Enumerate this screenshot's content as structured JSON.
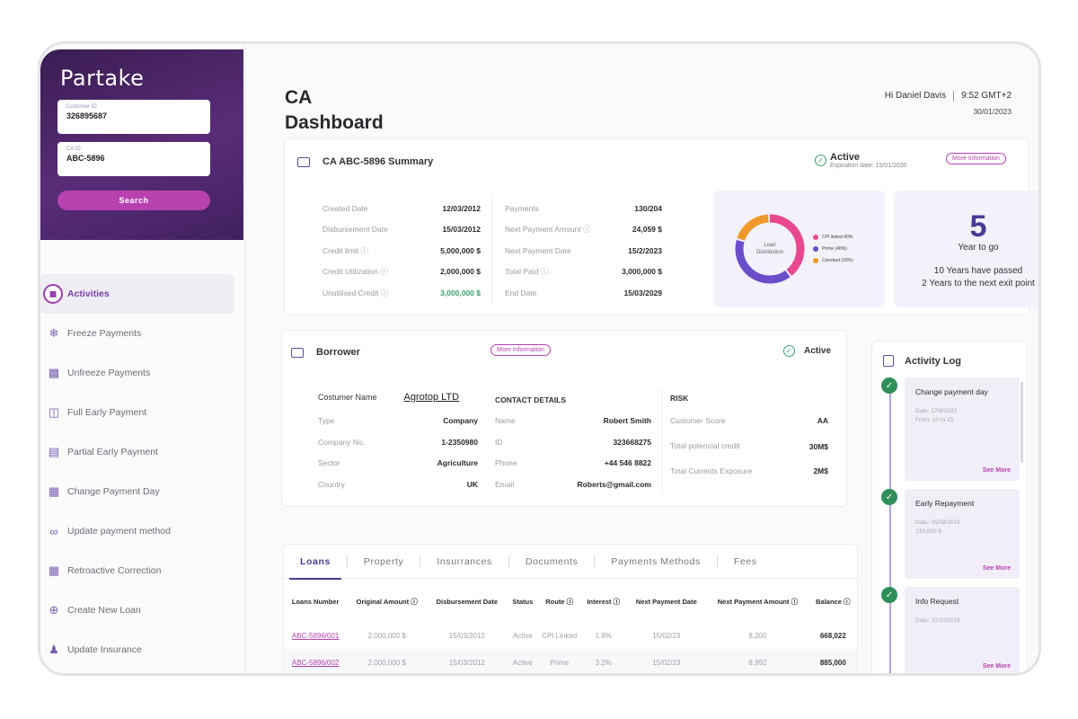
{
  "sidebar": {
    "logo": "Partake",
    "customer_id": {
      "label": "Costumer ID",
      "value": "326895687"
    },
    "ca_id": {
      "label": "CA ID",
      "value": "ABC-5896"
    },
    "search_label": "Search",
    "menu": [
      {
        "label": "Activities",
        "icon": "activities-icon",
        "active": true
      },
      {
        "label": "Freeze Payments",
        "icon": "snowflake-icon"
      },
      {
        "label": "Unfreeze Payments",
        "icon": "unfreeze-icon"
      },
      {
        "label": "Full Early Payment",
        "icon": "full-payment-icon"
      },
      {
        "label": "Partial Early Payment",
        "icon": "partial-payment-icon"
      },
      {
        "label": "Change Payment Day",
        "icon": "calendar-icon"
      },
      {
        "label": "Update payment method",
        "icon": "link-icon"
      },
      {
        "label": "Retroactive Correction",
        "icon": "correction-icon"
      },
      {
        "label": "Create New Loan",
        "icon": "new-loan-icon"
      },
      {
        "label": "Update  Insurance",
        "icon": "insurance-icon"
      }
    ]
  },
  "header": {
    "title_line1": "CA",
    "title_line2": "Dashboard",
    "greeting": "Hi Daniel Davis",
    "time": "9:52 GMT+2",
    "date": "30/01/2023"
  },
  "summary": {
    "title": "CA ABC-5896 Summary",
    "status": "Active",
    "expiration": "Expiration date: 15/01/2030",
    "more_info": "More Information",
    "left": [
      {
        "k": "Created Date",
        "v": "12/03/2012"
      },
      {
        "k": "Disbursement Date",
        "v": "15/03/2012"
      },
      {
        "k": "Credit limit",
        "v": "5,000,000 $"
      },
      {
        "k": "Credit Utilization",
        "v": "2,000,000 $"
      },
      {
        "k": "Unutilised Credit",
        "v": "3,000,000 $"
      }
    ],
    "right": [
      {
        "k": "Payments",
        "v": "130/204"
      },
      {
        "k": "Next Payment Amount",
        "v": "24,059 $"
      },
      {
        "k": "Next Payment Date",
        "v": "15/2/2023"
      },
      {
        "k": "Total Paid",
        "v": "3,000,000 $"
      },
      {
        "k": "End Date",
        "v": "15/03/2029"
      }
    ],
    "accent_green": "#3aa06e",
    "years": {
      "number": "5",
      "label": "Year to go",
      "line1": "10 Years have passed",
      "line2": "2 Years to the next exit point"
    }
  },
  "chart_data": {
    "type": "pie",
    "title": "Loan Distribution",
    "categories": [
      "CPI linked",
      "Prime",
      "Constant"
    ],
    "values": [
      40,
      40,
      20
    ],
    "labels": [
      "CPI linked  40%",
      "Prime  (40%)",
      "Constant  (20%)"
    ],
    "colors": [
      "#e8488f",
      "#6a4ec9",
      "#f0982a"
    ]
  },
  "borrower": {
    "title": "Borrower",
    "more_info": "More Information",
    "status": "Active",
    "customer_name_label": "Costumer Name",
    "customer_name": "Agrotop LTD",
    "details": [
      {
        "k": "Type",
        "v": "Company"
      },
      {
        "k": "Company No.",
        "v": "1-2350980"
      },
      {
        "k": "Sector",
        "v": "Agriculture"
      },
      {
        "k": "Country",
        "v": "UK"
      }
    ],
    "contact_title": "CONTACT DETAILS",
    "contact": [
      {
        "k": "Name",
        "v": "Robert Smith"
      },
      {
        "k": "ID",
        "v": "323668275"
      },
      {
        "k": "Phone",
        "v": "+44 546 8822"
      },
      {
        "k": "Email",
        "v": "Roberts@gmail.com"
      }
    ],
    "risk_title": "RISK",
    "risk": [
      {
        "k": "Customer Score",
        "v": "AA"
      },
      {
        "k": "Total potencial credit",
        "v": "30M$"
      },
      {
        "k": "Total Currents Exposure",
        "v": "2M$"
      }
    ]
  },
  "tabs": {
    "items": [
      "Loans",
      "Property",
      "Insurrances",
      "Documents",
      "Payments Methods",
      "Fees"
    ],
    "columns": [
      "Loans Number",
      "Original Amount",
      "Disbursement Date",
      "Status",
      "Route",
      "Interest",
      "Next Payment Date",
      "Next Payment Amount",
      "Balance"
    ],
    "rows": [
      [
        "ABC-5896/001",
        "2,000,000 $",
        "15/03/2012",
        "Active",
        "CPI Linked",
        "1.8%",
        "15/02/23",
        "8,200",
        "668,022"
      ],
      [
        "ABC-5896/002",
        "2,000,000 $",
        "15/03/2012",
        "Active",
        "Prime",
        "3.2%",
        "15/02/23",
        "8,992",
        "885,000"
      ]
    ]
  },
  "activity": {
    "title": "Activity Log",
    "items": [
      {
        "title": "Change payment day",
        "detail1": "Date: 17/8/2022",
        "detail2": "From: 10  to 15",
        "link": "See More"
      },
      {
        "title": "Early Repayment",
        "detail1": "Date: 05/08/2019",
        "detail2": "130,000 $",
        "link": "See More"
      },
      {
        "title": "Info Request",
        "detail1": "Date: 10/10/2018",
        "detail2": "",
        "link": "See More"
      }
    ]
  }
}
